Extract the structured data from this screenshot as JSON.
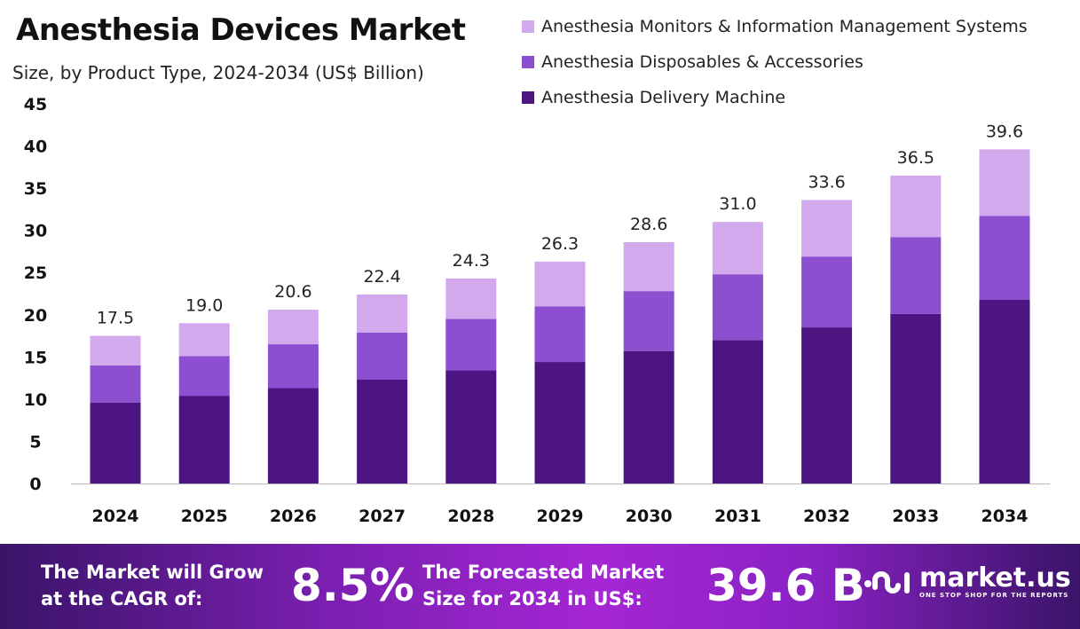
{
  "chart_data": {
    "type": "stacked-bar",
    "title": "Anesthesia Devices Market",
    "subtitle": "Size, by Product Type, 2024-2034 (US$ Billion)",
    "categories": [
      "2024",
      "2025",
      "2026",
      "2027",
      "2028",
      "2029",
      "2030",
      "2031",
      "2032",
      "2033",
      "2034"
    ],
    "series": [
      {
        "name": "Anesthesia Delivery Machine",
        "color": "#4c1582",
        "values": [
          9.6,
          10.4,
          11.3,
          12.3,
          13.4,
          14.4,
          15.7,
          17.0,
          18.5,
          20.1,
          21.8
        ]
      },
      {
        "name": "Anesthesia Disposables & Accessories",
        "color": "#8b4fd0",
        "values": [
          4.4,
          4.7,
          5.2,
          5.6,
          6.1,
          6.6,
          7.1,
          7.8,
          8.4,
          9.1,
          9.9
        ]
      },
      {
        "name": "Anesthesia Monitors & Information Management Systems",
        "color": "#d3a9ee",
        "values": [
          3.5,
          3.9,
          4.1,
          4.5,
          4.8,
          5.3,
          5.8,
          6.2,
          6.7,
          7.3,
          7.9
        ]
      }
    ],
    "totals": [
      "17.5",
      "19.0",
      "20.6",
      "22.4",
      "24.3",
      "26.3",
      "28.6",
      "31.0",
      "33.6",
      "36.5",
      "39.6"
    ],
    "ylim": [
      0,
      45
    ],
    "yticks": [
      "0",
      "5",
      "10",
      "15",
      "20",
      "25",
      "30",
      "35",
      "40",
      "45"
    ],
    "grid": false,
    "legend": "top-right"
  },
  "footer": {
    "cagr_label_1": "The Market will Grow",
    "cagr_label_2": "at the CAGR of:",
    "cagr_value": "8.5%",
    "forecast_label_1": "The Forecasted Market",
    "forecast_label_2": "Size for 2034 in US$:",
    "forecast_value": "39.6 B",
    "brand": "market.us",
    "tagline": "ONE STOP SHOP FOR THE REPORTS"
  }
}
